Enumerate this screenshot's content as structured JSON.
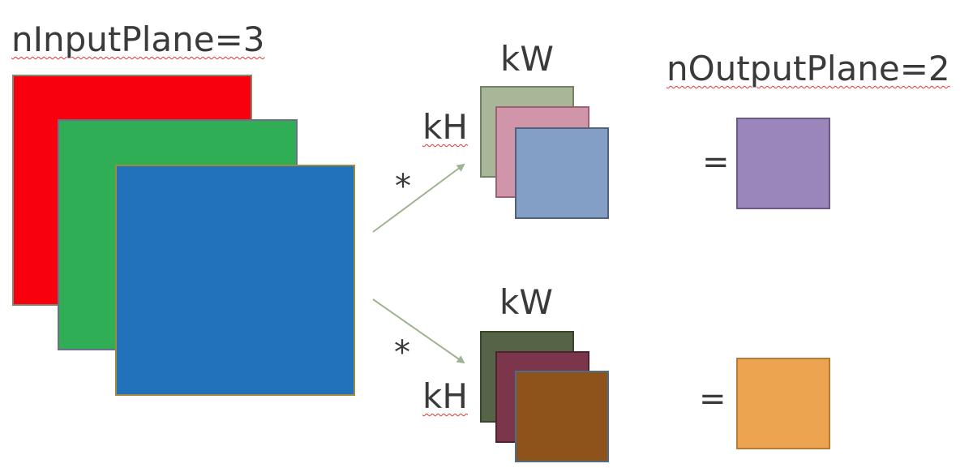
{
  "input": {
    "label": "nInputPlane=3",
    "planes": [
      {
        "name": "plane-red",
        "color": "#f8000e",
        "border": "#7f8a6e"
      },
      {
        "name": "plane-green",
        "color": "#2fae55",
        "border": "#6e6e8a"
      },
      {
        "name": "plane-blue",
        "color": "#2271bb",
        "border": "#a08a3c"
      }
    ]
  },
  "output_label": "nOutputPlane=2",
  "kernels": [
    {
      "kw_label": "kW",
      "kh_label": "kH",
      "operator": "*",
      "equals": "=",
      "filters": [
        "#a9b799",
        "#d095a8",
        "#849fc5"
      ],
      "filter_borders": [
        "#758165",
        "#9d6075",
        "#50617c"
      ],
      "output_color": "#9a86bb",
      "output_border": "#6c5a86"
    },
    {
      "kw_label": "kW",
      "kh_label": "kH",
      "operator": "*",
      "equals": "=",
      "filters": [
        "#556347",
        "#7c364c",
        "#8d531b"
      ],
      "filter_borders": [
        "#39452f",
        "#4f2232",
        "#4e6c8a"
      ],
      "output_color": "#eda450",
      "output_border": "#b97a33"
    }
  ],
  "arrow_color": "#9fb393"
}
